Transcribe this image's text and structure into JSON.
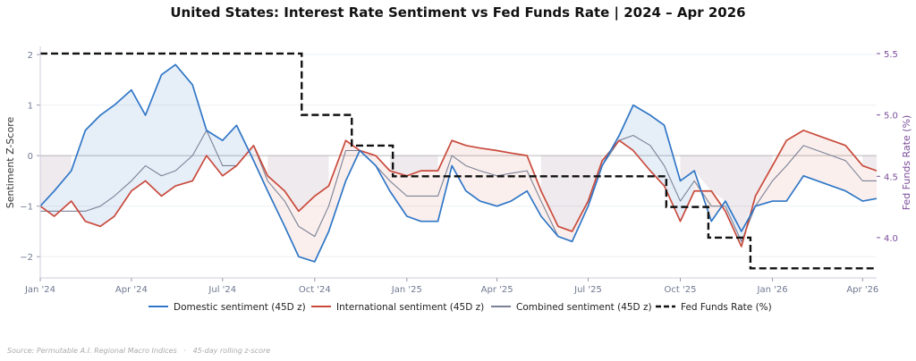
{
  "chart_data": {
    "type": "line",
    "title": "United States: Interest Rate Sentiment vs Fed Funds Rate  |  2024 – Apr 2026",
    "ylabel": "Sentiment Z-Score",
    "y2label": "Fed Funds Rate (%)",
    "ylim": [
      -2.42,
      2.16
    ],
    "y2lim": [
      3.672,
      5.558
    ],
    "xlim": [
      "2024-01-01",
      "2026-04-15"
    ],
    "yticks": [
      2,
      1,
      0,
      -1,
      -2
    ],
    "ytick_labels": [
      "2",
      "1",
      "0",
      "−1",
      "−2"
    ],
    "y2ticks": [
      5.5,
      5.0,
      4.5,
      4.0
    ],
    "y2tick_labels": [
      "5.5",
      "5.0",
      "4.5",
      "4.0"
    ],
    "xticks": [
      "2024-01-01",
      "2024-04-01",
      "2024-07-01",
      "2024-10-01",
      "2025-01-01",
      "2025-04-01",
      "2025-07-01",
      "2025-10-01",
      "2026-01-01",
      "2026-04-01"
    ],
    "xtick_labels": [
      "Jan '24",
      "Apr '24",
      "Jul '24",
      "Oct '24",
      "Jan '25",
      "Apr '25",
      "Jul '25",
      "Oct '25",
      "Jan '26",
      "Apr '26"
    ],
    "grid": true,
    "legend_position": "bottom",
    "x": [
      "2024-01-01",
      "2024-01-15",
      "2024-02-01",
      "2024-02-15",
      "2024-03-01",
      "2024-03-15",
      "2024-04-01",
      "2024-04-15",
      "2024-05-01",
      "2024-05-15",
      "2024-06-01",
      "2024-06-15",
      "2024-07-01",
      "2024-07-15",
      "2024-08-01",
      "2024-08-15",
      "2024-09-01",
      "2024-09-15",
      "2024-10-01",
      "2024-10-15",
      "2024-11-01",
      "2024-11-15",
      "2024-12-01",
      "2024-12-15",
      "2025-01-01",
      "2025-01-15",
      "2025-02-01",
      "2025-02-15",
      "2025-03-01",
      "2025-03-15",
      "2025-04-01",
      "2025-04-15",
      "2025-05-01",
      "2025-05-15",
      "2025-06-01",
      "2025-06-15",
      "2025-07-01",
      "2025-07-15",
      "2025-08-01",
      "2025-08-15",
      "2025-09-01",
      "2025-09-15",
      "2025-10-01",
      "2025-10-15",
      "2025-11-01",
      "2025-11-15",
      "2025-12-01",
      "2025-12-15",
      "2026-01-01",
      "2026-01-15",
      "2026-02-01",
      "2026-02-15",
      "2026-03-01",
      "2026-03-15",
      "2026-04-01",
      "2026-04-15"
    ],
    "series": [
      {
        "name": "Domestic sentiment (45D z)",
        "color": "#2f76c6",
        "axis": "left",
        "values": [
          -1.0,
          -0.7,
          -0.3,
          0.5,
          0.8,
          1.0,
          1.3,
          0.8,
          1.6,
          1.8,
          1.4,
          0.5,
          0.3,
          0.6,
          -0.1,
          -0.7,
          -1.4,
          -2.0,
          -2.1,
          -1.5,
          -0.5,
          0.1,
          -0.2,
          -0.7,
          -1.2,
          -1.3,
          -1.3,
          -0.2,
          -0.7,
          -0.9,
          -1.0,
          -0.9,
          -0.7,
          -1.2,
          -1.6,
          -1.7,
          -1.0,
          -0.2,
          0.4,
          1.0,
          0.8,
          0.6,
          -0.5,
          -0.3,
          -1.3,
          -0.9,
          -1.5,
          -1.0,
          -0.9,
          -0.9,
          -0.4,
          -0.5,
          -0.6,
          -0.7,
          -0.9,
          -0.85
        ]
      },
      {
        "name": "International sentiment (45D z)",
        "color": "#c94a3c",
        "axis": "left",
        "values": [
          -1.0,
          -1.2,
          -0.9,
          -1.3,
          -1.4,
          -1.2,
          -0.7,
          -0.5,
          -0.8,
          -0.6,
          -0.5,
          0.0,
          -0.4,
          -0.2,
          0.2,
          -0.4,
          -0.7,
          -1.1,
          -0.8,
          -0.6,
          0.3,
          0.1,
          0.0,
          -0.3,
          -0.4,
          -0.3,
          -0.3,
          0.3,
          0.2,
          0.15,
          0.1,
          0.05,
          0.0,
          -0.7,
          -1.4,
          -1.5,
          -0.9,
          -0.1,
          0.3,
          0.1,
          -0.3,
          -0.6,
          -1.3,
          -0.7,
          -0.7,
          -1.1,
          -1.8,
          -0.8,
          -0.2,
          0.3,
          0.5,
          0.4,
          0.3,
          0.2,
          -0.2,
          -0.3
        ]
      },
      {
        "name": "Combined sentiment (45D z)",
        "color": "#7a8196",
        "axis": "left",
        "values": [
          -1.1,
          -1.1,
          -1.1,
          -1.1,
          -1.0,
          -0.8,
          -0.5,
          -0.2,
          -0.4,
          -0.3,
          0.0,
          0.5,
          -0.2,
          -0.2,
          0.2,
          -0.5,
          -0.9,
          -1.4,
          -1.6,
          -1.0,
          0.1,
          0.1,
          -0.2,
          -0.5,
          -0.8,
          -0.8,
          -0.8,
          0.0,
          -0.2,
          -0.3,
          -0.4,
          -0.35,
          -0.3,
          -0.9,
          -1.6,
          -1.7,
          -1.0,
          -0.2,
          0.3,
          0.4,
          0.2,
          -0.2,
          -0.9,
          -0.5,
          -1.0,
          -1.0,
          -1.7,
          -1.0,
          -0.5,
          -0.2,
          0.2,
          0.1,
          0.0,
          -0.1,
          -0.5,
          -0.5
        ]
      }
    ],
    "fed_funds": {
      "name": "Fed Funds Rate (%)",
      "color": "#111111",
      "axis": "right",
      "style": "dashed-step",
      "x": [
        "2024-01-01",
        "2024-09-18",
        "2024-11-07",
        "2024-12-18",
        "2025-09-17",
        "2025-10-29",
        "2025-12-10",
        "2026-04-15"
      ],
      "values": [
        5.5,
        5.0,
        4.75,
        4.5,
        4.25,
        4.0,
        3.75,
        3.75
      ]
    },
    "source_note": "Source: Permutable A.I. Regional Macro Indices   ·   45-day rolling z-score"
  }
}
